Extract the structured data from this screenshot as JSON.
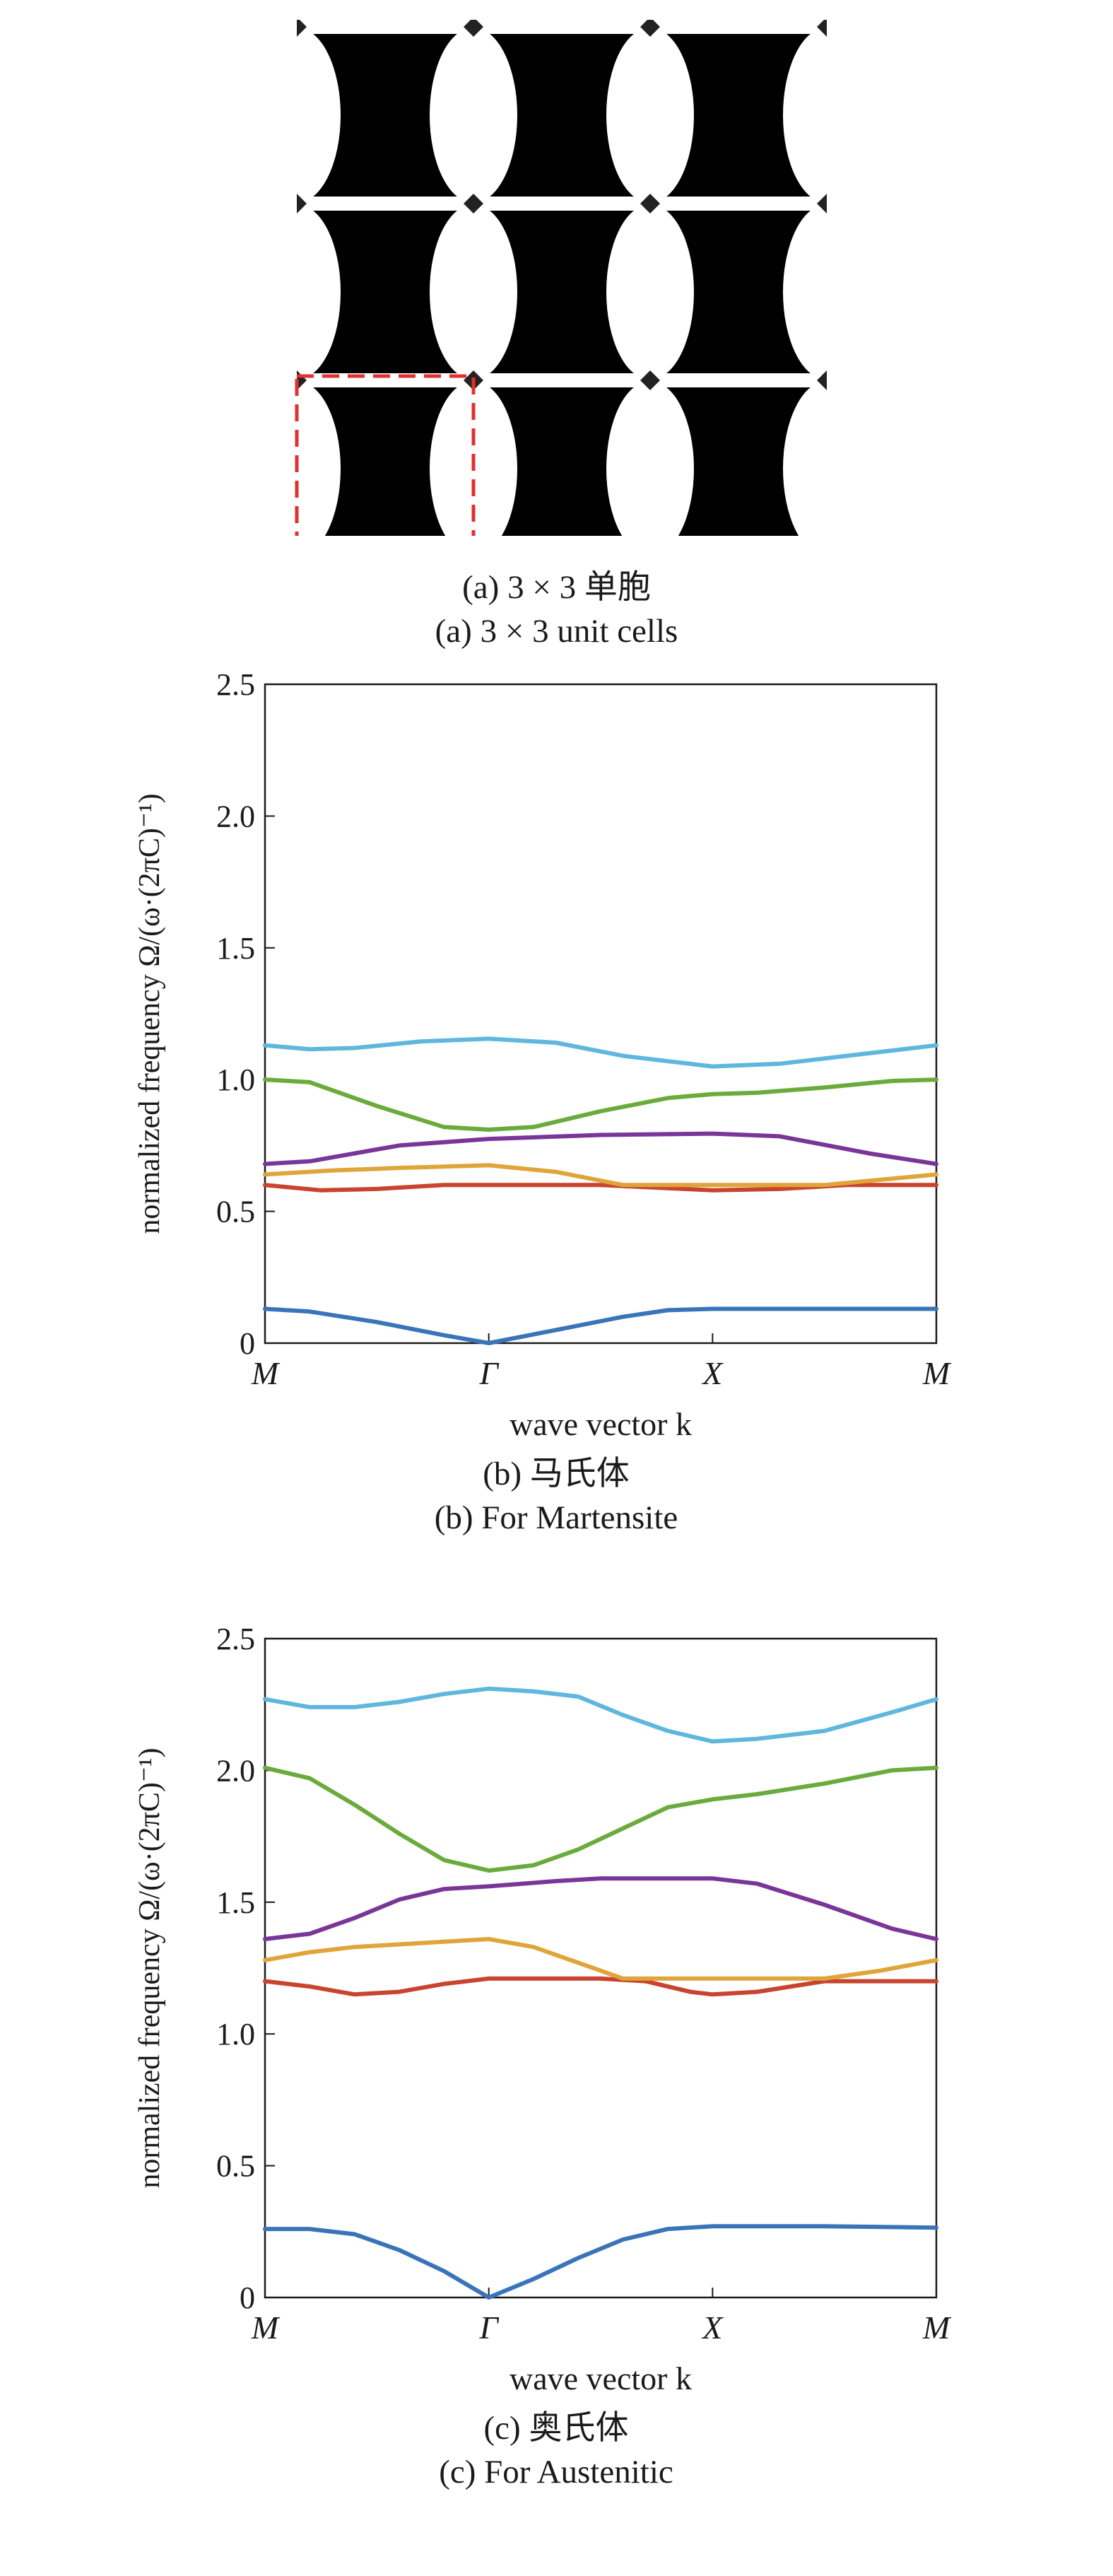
{
  "panel_a": {
    "caption_cn": "(a) 3 × 3 单胞",
    "caption_en": "(a) 3 × 3 unit cells"
  },
  "colors": {
    "band1": "#3a74b8",
    "band2": "#c9442f",
    "band3": "#e0a53a",
    "band4": "#7a3598",
    "band5": "#6aab3c",
    "band6": "#5fb7dd",
    "highlight_box": "#e03030"
  },
  "chart_data": [
    {
      "type": "line",
      "x": [
        "M",
        "Γ",
        "X",
        "M"
      ],
      "xlabel": "wave vector k",
      "ylabel": "normalized frequency Ω/(ω·(2πC)⁻¹)",
      "ylim": [
        0,
        2.5
      ],
      "yticks": [
        "0",
        "0.5",
        "1.0",
        "1.5",
        "2.0",
        "2.5"
      ],
      "caption_cn": "(b) 马氏体",
      "caption_en": "(b) For Martensite",
      "series": [
        {
          "color": "#3a74b8",
          "points": [
            [
              0,
              0.13
            ],
            [
              0.2,
              0.12
            ],
            [
              0.5,
              0.08
            ],
            [
              0.8,
              0.03
            ],
            [
              1,
              0
            ],
            [
              1.3,
              0.05
            ],
            [
              1.6,
              0.1
            ],
            [
              1.8,
              0.125
            ],
            [
              2,
              0.13
            ],
            [
              2.5,
              0.13
            ],
            [
              3,
              0.13
            ]
          ]
        },
        {
          "color": "#c9442f",
          "points": [
            [
              0,
              0.6
            ],
            [
              0.25,
              0.58
            ],
            [
              0.5,
              0.585
            ],
            [
              0.8,
              0.6
            ],
            [
              1,
              0.6
            ],
            [
              1.5,
              0.6
            ],
            [
              2,
              0.58
            ],
            [
              2.3,
              0.585
            ],
            [
              2.6,
              0.6
            ],
            [
              3,
              0.6
            ]
          ]
        },
        {
          "color": "#e0a53a",
          "points": [
            [
              0,
              0.64
            ],
            [
              0.3,
              0.655
            ],
            [
              0.6,
              0.665
            ],
            [
              1,
              0.675
            ],
            [
              1.3,
              0.65
            ],
            [
              1.6,
              0.6
            ],
            [
              2,
              0.6
            ],
            [
              2.5,
              0.6
            ],
            [
              2.75,
              0.62
            ],
            [
              3,
              0.64
            ]
          ]
        },
        {
          "color": "#7a3598",
          "points": [
            [
              0,
              0.68
            ],
            [
              0.2,
              0.69
            ],
            [
              0.6,
              0.75
            ],
            [
              1,
              0.775
            ],
            [
              1.5,
              0.79
            ],
            [
              2,
              0.795
            ],
            [
              2.3,
              0.785
            ],
            [
              2.7,
              0.72
            ],
            [
              3,
              0.68
            ]
          ]
        },
        {
          "color": "#6aab3c",
          "points": [
            [
              0,
              1.0
            ],
            [
              0.2,
              0.99
            ],
            [
              0.5,
              0.9
            ],
            [
              0.8,
              0.82
            ],
            [
              1,
              0.81
            ],
            [
              1.2,
              0.82
            ],
            [
              1.5,
              0.88
            ],
            [
              1.8,
              0.93
            ],
            [
              2,
              0.945
            ],
            [
              2.2,
              0.95
            ],
            [
              2.5,
              0.97
            ],
            [
              2.8,
              0.995
            ],
            [
              3,
              1.0
            ]
          ]
        },
        {
          "color": "#5fb7dd",
          "points": [
            [
              0,
              1.13
            ],
            [
              0.2,
              1.115
            ],
            [
              0.4,
              1.12
            ],
            [
              0.7,
              1.145
            ],
            [
              1,
              1.155
            ],
            [
              1.3,
              1.14
            ],
            [
              1.6,
              1.09
            ],
            [
              2,
              1.05
            ],
            [
              2.3,
              1.06
            ],
            [
              2.6,
              1.09
            ],
            [
              3,
              1.13
            ]
          ]
        }
      ]
    },
    {
      "type": "line",
      "x": [
        "M",
        "Γ",
        "X",
        "M"
      ],
      "xlabel": "wave vector k",
      "ylabel": "normalized frequency Ω/(ω·(2πC)⁻¹)",
      "ylim": [
        0,
        2.5
      ],
      "yticks": [
        "0",
        "0.5",
        "1.0",
        "1.5",
        "2.0",
        "2.5"
      ],
      "caption_cn": "(c) 奥氏体",
      "caption_en": "(c) For Austenitic",
      "series": [
        {
          "color": "#3a74b8",
          "points": [
            [
              0,
              0.26
            ],
            [
              0.2,
              0.26
            ],
            [
              0.4,
              0.24
            ],
            [
              0.6,
              0.18
            ],
            [
              0.8,
              0.1
            ],
            [
              1,
              0
            ],
            [
              1.2,
              0.07
            ],
            [
              1.4,
              0.15
            ],
            [
              1.6,
              0.22
            ],
            [
              1.8,
              0.26
            ],
            [
              2,
              0.27
            ],
            [
              2.5,
              0.27
            ],
            [
              3,
              0.265
            ]
          ]
        },
        {
          "color": "#c9442f",
          "points": [
            [
              0,
              1.2
            ],
            [
              0.2,
              1.18
            ],
            [
              0.4,
              1.15
            ],
            [
              0.6,
              1.16
            ],
            [
              0.8,
              1.19
            ],
            [
              1,
              1.21
            ],
            [
              1.5,
              1.21
            ],
            [
              1.7,
              1.2
            ],
            [
              1.9,
              1.16
            ],
            [
              2,
              1.15
            ],
            [
              2.2,
              1.16
            ],
            [
              2.5,
              1.2
            ],
            [
              3,
              1.2
            ]
          ]
        },
        {
          "color": "#e0a53a",
          "points": [
            [
              0,
              1.28
            ],
            [
              0.2,
              1.31
            ],
            [
              0.4,
              1.33
            ],
            [
              0.7,
              1.345
            ],
            [
              1,
              1.36
            ],
            [
              1.2,
              1.33
            ],
            [
              1.4,
              1.27
            ],
            [
              1.6,
              1.21
            ],
            [
              2,
              1.21
            ],
            [
              2.5,
              1.21
            ],
            [
              2.75,
              1.24
            ],
            [
              3,
              1.28
            ]
          ]
        },
        {
          "color": "#7a3598",
          "points": [
            [
              0,
              1.36
            ],
            [
              0.2,
              1.38
            ],
            [
              0.4,
              1.44
            ],
            [
              0.6,
              1.51
            ],
            [
              0.8,
              1.55
            ],
            [
              1,
              1.56
            ],
            [
              1.3,
              1.58
            ],
            [
              1.5,
              1.59
            ],
            [
              2,
              1.59
            ],
            [
              2.2,
              1.57
            ],
            [
              2.5,
              1.49
            ],
            [
              2.8,
              1.4
            ],
            [
              3,
              1.36
            ]
          ]
        },
        {
          "color": "#6aab3c",
          "points": [
            [
              0,
              2.01
            ],
            [
              0.2,
              1.97
            ],
            [
              0.4,
              1.87
            ],
            [
              0.6,
              1.76
            ],
            [
              0.8,
              1.66
            ],
            [
              1,
              1.62
            ],
            [
              1.2,
              1.64
            ],
            [
              1.4,
              1.7
            ],
            [
              1.6,
              1.78
            ],
            [
              1.8,
              1.86
            ],
            [
              2,
              1.89
            ],
            [
              2.2,
              1.91
            ],
            [
              2.5,
              1.95
            ],
            [
              2.8,
              2.0
            ],
            [
              3,
              2.01
            ]
          ]
        },
        {
          "color": "#5fb7dd",
          "points": [
            [
              0,
              2.27
            ],
            [
              0.2,
              2.24
            ],
            [
              0.4,
              2.24
            ],
            [
              0.6,
              2.26
            ],
            [
              0.8,
              2.29
            ],
            [
              1,
              2.31
            ],
            [
              1.2,
              2.3
            ],
            [
              1.4,
              2.28
            ],
            [
              1.6,
              2.21
            ],
            [
              1.8,
              2.15
            ],
            [
              2,
              2.11
            ],
            [
              2.2,
              2.12
            ],
            [
              2.5,
              2.15
            ],
            [
              2.8,
              2.22
            ],
            [
              3,
              2.27
            ]
          ]
        }
      ]
    }
  ]
}
